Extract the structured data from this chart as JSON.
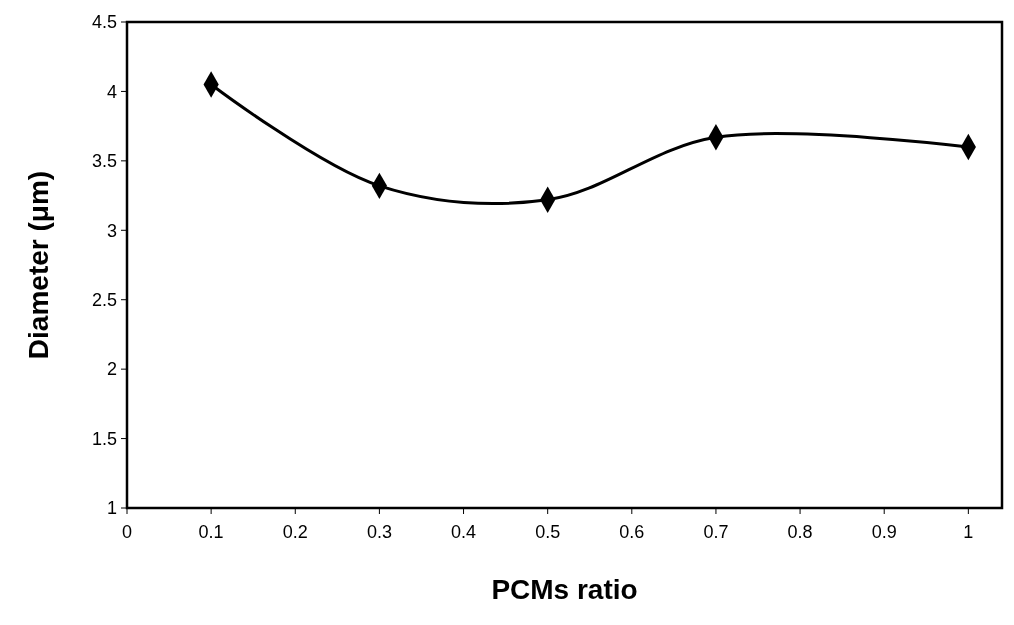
{
  "chart_data": {
    "type": "line",
    "xlabel": "PCMs ratio",
    "ylabel": "Diameter (μm)",
    "x": [
      0.1,
      0.3,
      0.5,
      0.7,
      1
    ],
    "series": [
      {
        "color": "#000000",
        "values": [
          4.05,
          3.32,
          3.22,
          3.67,
          3.6
        ]
      }
    ],
    "xlim": [
      0,
      1.04
    ],
    "xticks": [
      0,
      0.1,
      0.2,
      0.3,
      0.4,
      0.5,
      0.6,
      0.7,
      0.8,
      0.9,
      1
    ],
    "ylim": [
      1,
      4.5
    ],
    "yticks": [
      1,
      1.5,
      2,
      2.5,
      3,
      3.5,
      4,
      4.5
    ],
    "marker": "diamond",
    "line_style": "solid",
    "grid": false
  }
}
